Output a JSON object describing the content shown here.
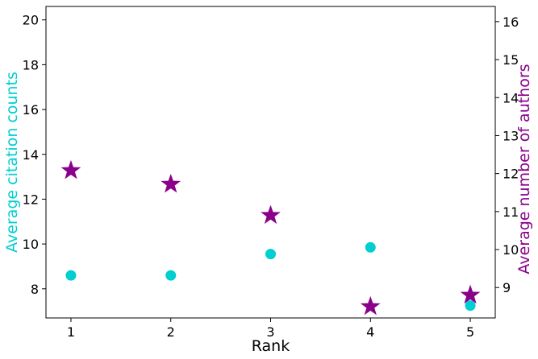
{
  "chart_data": {
    "type": "scatter",
    "title": "",
    "xlabel": "Rank",
    "ylabel_left": "Average citation counts",
    "ylabel_right": "Average number of authors",
    "x_ticks": [
      1,
      2,
      3,
      4,
      5
    ],
    "y_left_ticks": [
      8,
      10,
      12,
      14,
      16,
      18,
      20
    ],
    "y_right_ticks": [
      9,
      10,
      11,
      12,
      13,
      14,
      15,
      16
    ],
    "xlim": [
      0.75,
      5.25
    ],
    "ylim_left": [
      6.7,
      20.6
    ],
    "ylim_right": [
      8.2,
      16.4
    ],
    "grid": false,
    "series": [
      {
        "axis": "left",
        "marker": "circle",
        "color": "#00CED1",
        "x": [
          1,
          2,
          3,
          4,
          5
        ],
        "values": [
          8.6,
          8.6,
          9.55,
          9.85,
          7.25
        ]
      },
      {
        "axis": "right",
        "marker": "star",
        "color": "#8B008B",
        "x": [
          1,
          2,
          3,
          4,
          5
        ],
        "values": [
          12.08,
          11.72,
          10.9,
          8.5,
          8.8
        ]
      }
    ]
  }
}
